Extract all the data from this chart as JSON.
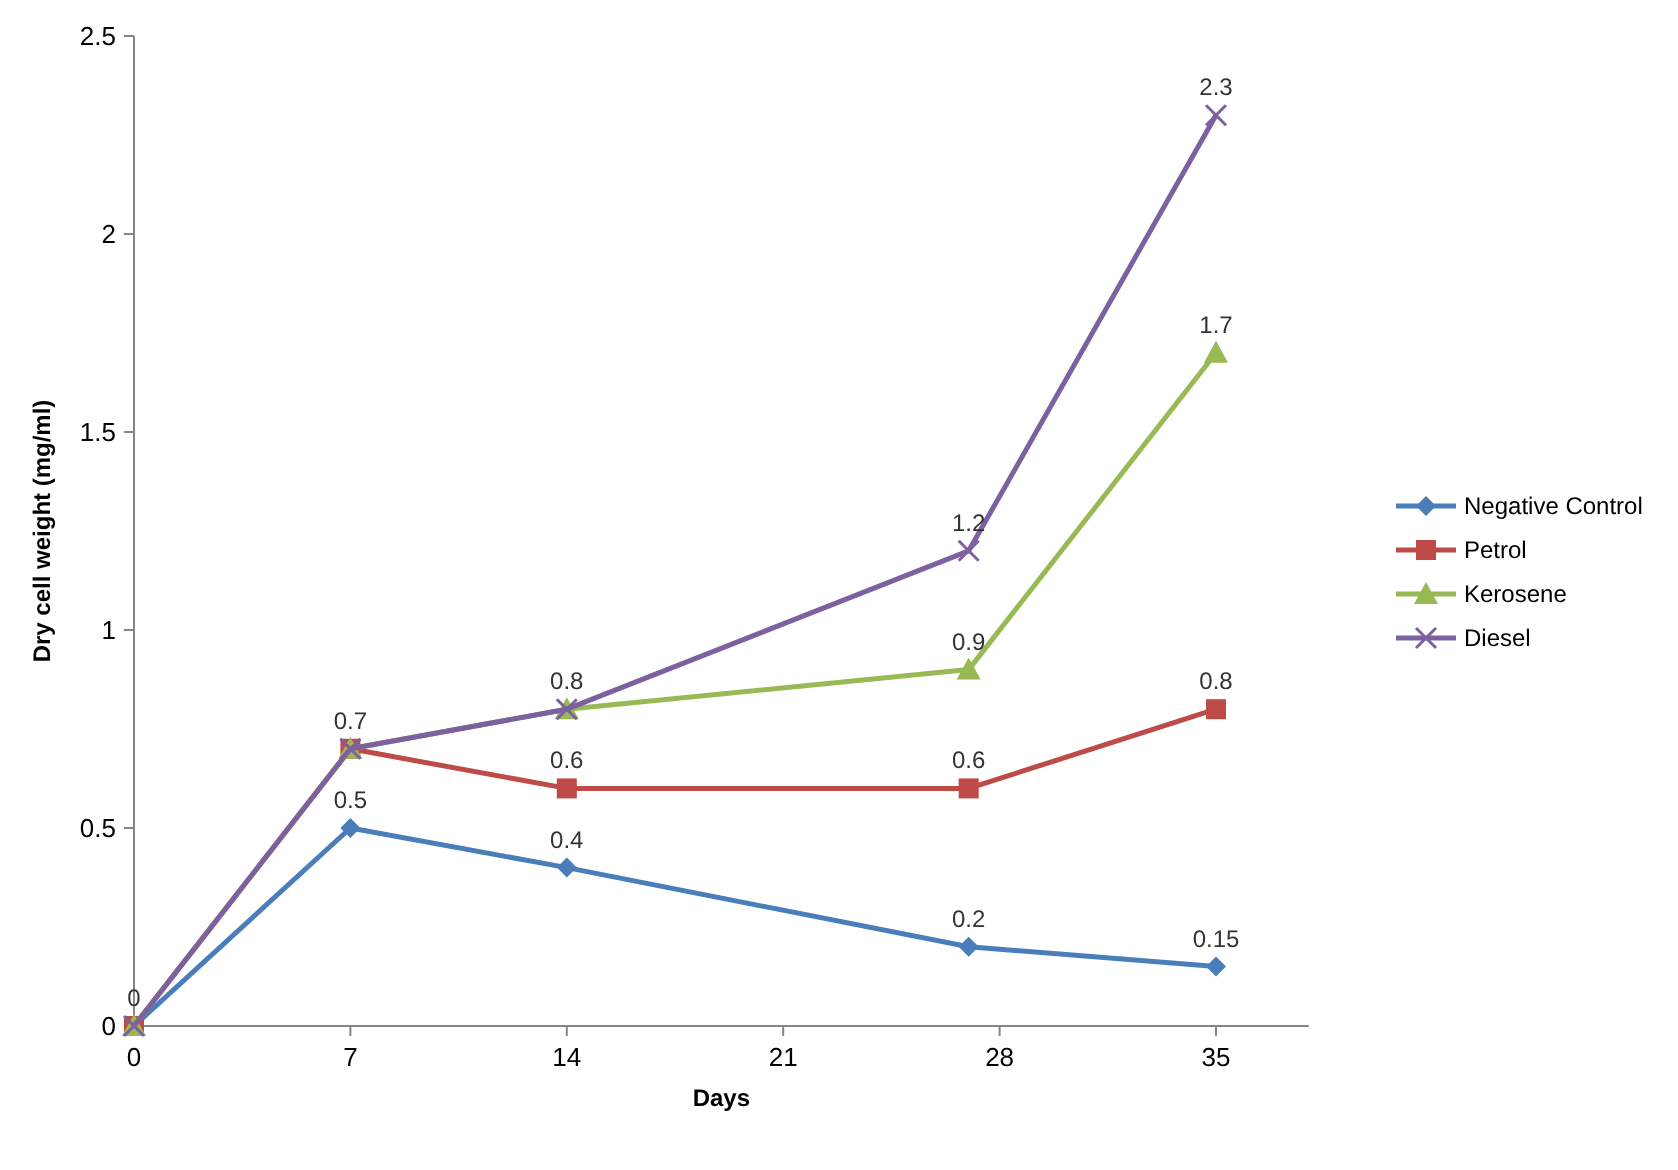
{
  "chart_data": {
    "type": "line",
    "xlabel": "Days",
    "ylabel": "Dry cell weight (mg/ml)",
    "x": [
      0,
      7,
      14,
      27,
      35
    ],
    "xlim": [
      0,
      38
    ],
    "xticks": [
      0,
      7,
      14,
      21,
      28,
      35
    ],
    "ylim": [
      0,
      2.5
    ],
    "yticks": [
      0,
      0.5,
      1,
      1.5,
      2,
      2.5
    ],
    "grid": false,
    "legend": "right",
    "series": [
      {
        "name": "Negative Control",
        "color": "#4a7ebb",
        "marker": "diamond",
        "values": [
          0,
          0.5,
          0.4,
          0.2,
          0.15
        ],
        "value_labels": [
          null,
          "0.5",
          "0.4",
          "0.2",
          "0.15"
        ]
      },
      {
        "name": "Petrol",
        "color": "#be4b48",
        "marker": "square",
        "values": [
          0,
          0.7,
          0.6,
          0.6,
          0.8
        ],
        "value_labels": [
          null,
          null,
          "0.6",
          "0.6",
          "0.8"
        ]
      },
      {
        "name": "Kerosene",
        "color": "#98b954",
        "marker": "triangle",
        "values": [
          0,
          0.7,
          0.8,
          0.9,
          1.7
        ],
        "value_labels": [
          null,
          null,
          null,
          "0.9",
          "1.7"
        ]
      },
      {
        "name": "Diesel",
        "color": "#7d60a0",
        "marker": "cross",
        "values": [
          0,
          0.7,
          0.8,
          1.2,
          2.3
        ],
        "value_labels": [
          "0",
          "0.7",
          "0.8",
          "1.2",
          "2.3"
        ]
      }
    ]
  }
}
